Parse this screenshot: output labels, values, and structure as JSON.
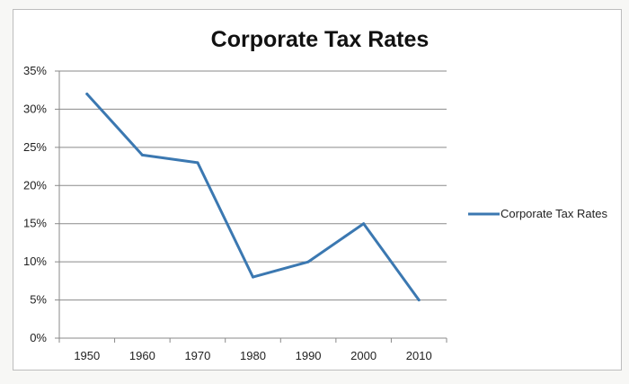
{
  "chart_data": {
    "type": "line",
    "title": "Corporate Tax Rates",
    "xlabel": "",
    "ylabel": "",
    "categories": [
      "1950",
      "1960",
      "1970",
      "1980",
      "1990",
      "2000",
      "2010"
    ],
    "series": [
      {
        "name": "Corporate Tax Rates",
        "values": [
          32,
          24,
          23,
          8,
          10,
          15,
          5
        ]
      }
    ],
    "ylim": [
      0,
      35
    ],
    "yticks": [
      "0%",
      "5%",
      "10%",
      "15%",
      "20%",
      "25%",
      "30%",
      "35%"
    ],
    "grid": true,
    "legend_position": "right",
    "line_color": "#3b78b1"
  }
}
